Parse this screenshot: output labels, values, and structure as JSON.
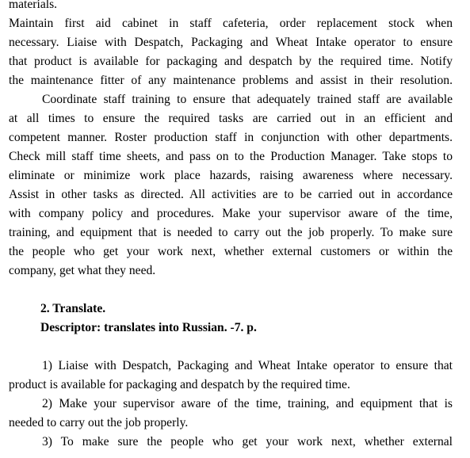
{
  "top_fragment": "materials.",
  "paragraph1": [
    "Maintain first aid cabinet in staff cafeteria, order replacement stock when",
    "necessary. Liaise with Despatch, Packaging and Wheat Intake operator to ensure",
    "that product is available for packaging and despatch by the required time. Notify",
    "the maintenance fitter of any maintenance problems and assist in their resolution."
  ],
  "paragraph2": [
    "Coordinate staff training to ensure that adequately trained staff are available",
    "at all times to ensure the required tasks are carried out in an efficient and",
    "competent manner. Roster production staff in conjunction with other departments.",
    "Check mill staff time sheets, and pass on to the Production Manager. Take stops to",
    "eliminate or minimize work place hazards, raising awareness where necessary.",
    "Assist in other tasks as directed. All activities are to be carried out in accordance",
    "with company policy and procedures. Make your supervisor aware of the time,",
    "training, and equipment that is needed to carry out the job properly. To make sure",
    "the people who get your work next, whether external customers or within the",
    "company, get what they need."
  ],
  "task": {
    "heading": "2. Translate.",
    "descriptor": "Descriptor: translates into Russian. -7. p."
  },
  "items": [
    {
      "first": "1) Liaise with Despatch, Packaging and Wheat Intake operator to ensure that",
      "second": "product is available for packaging and despatch by the required time."
    },
    {
      "first": "2) Make your supervisor aware of the time, training, and equipment that is",
      "second": "needed to carry out the job properly."
    },
    {
      "first": "3) To make sure the people who get your work next, whether external"
    }
  ]
}
